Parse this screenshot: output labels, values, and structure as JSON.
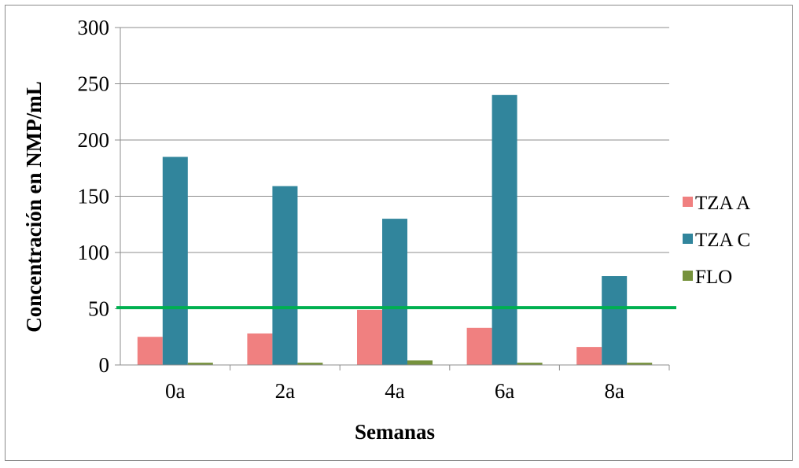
{
  "chart_data": {
    "type": "bar",
    "title": "",
    "xlabel": "Semanas",
    "ylabel": "Concentración en NMP/mL",
    "categories": [
      "0a",
      "2a",
      "4a",
      "6a",
      "8a"
    ],
    "series": [
      {
        "name": "TZA A",
        "color": "#f08080",
        "values": [
          25,
          28,
          49,
          33,
          16
        ]
      },
      {
        "name": "TZA C",
        "color": "#31859c",
        "values": [
          185,
          159,
          130,
          240,
          79
        ]
      },
      {
        "name": "FLO",
        "color": "#76923c",
        "values": [
          2,
          2,
          4,
          2,
          2
        ]
      }
    ],
    "ylim": [
      0,
      300
    ],
    "yticks": [
      0,
      50,
      100,
      150,
      200,
      250,
      300
    ],
    "grid": true,
    "legend_position": "right",
    "reference_line": {
      "value": 51,
      "color": "#00b050"
    }
  }
}
